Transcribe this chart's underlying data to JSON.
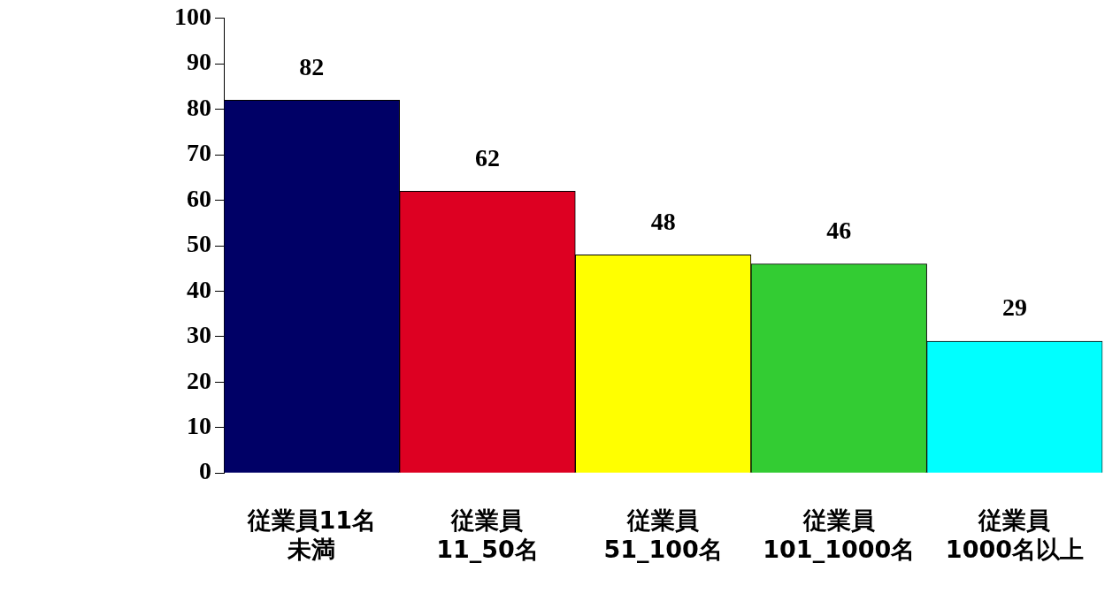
{
  "chart_data": {
    "type": "bar",
    "categories": [
      "従業員11名未満",
      "従業員11_50名",
      "従業員51_100名",
      "従業員101_1000名",
      "従業員1000名以上"
    ],
    "values": [
      82,
      62,
      48,
      46,
      29
    ],
    "colors": [
      "#000066",
      "#dd0022",
      "#ffff00",
      "#33cc33",
      "#00ffff"
    ],
    "ylim": [
      0,
      100
    ],
    "yticks": [
      0,
      10,
      20,
      30,
      40,
      50,
      60,
      70,
      80,
      90,
      100
    ],
    "grid": false,
    "legend": false,
    "data_labels": true
  }
}
